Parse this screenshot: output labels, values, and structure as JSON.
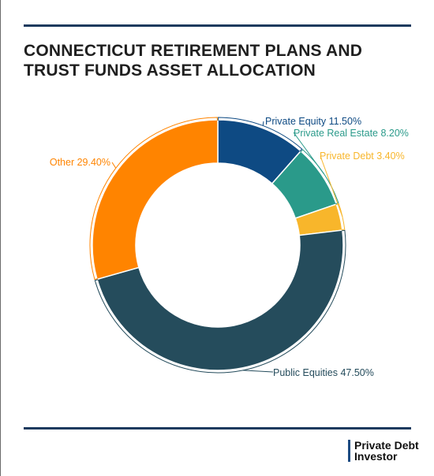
{
  "header": {
    "title": "CONNECTICUT RETIREMENT PLANS AND TRUST FUNDS ASSET ALLOCATION"
  },
  "brand": {
    "line1": "Private Debt",
    "line2": "Investor",
    "color": "#1c4b82"
  },
  "colors": {
    "rule": "#1c3a5e"
  },
  "chart_data": {
    "type": "pie",
    "variant": "donut",
    "title": "CONNECTICUT RETIREMENT PLANS AND TRUST FUNDS ASSET ALLOCATION",
    "unit": "%",
    "series": [
      {
        "name": "Private Equity",
        "value": 11.5,
        "label": "Private Equity 11.50%",
        "color": "#0e4a83"
      },
      {
        "name": "Private Real Estate",
        "value": 8.2,
        "label": "Private Real Estate 8.20%",
        "color": "#2a9a8a"
      },
      {
        "name": "Private Debt",
        "value": 3.4,
        "label": "Private Debt 3.40%",
        "color": "#f8b62b"
      },
      {
        "name": "Public Equities",
        "value": 47.5,
        "label": "Public Equities 47.50%",
        "color": "#254c5c"
      },
      {
        "name": "Other",
        "value": 29.4,
        "label": "Other 29.40%",
        "color": "#ff8400"
      }
    ],
    "label_colors": {
      "Private Equity": "#0e4a83",
      "Private Real Estate": "#2a9a8a",
      "Private Debt": "#f8b62b",
      "Public Equities": "#254c5c",
      "Other": "#ff8400"
    }
  }
}
